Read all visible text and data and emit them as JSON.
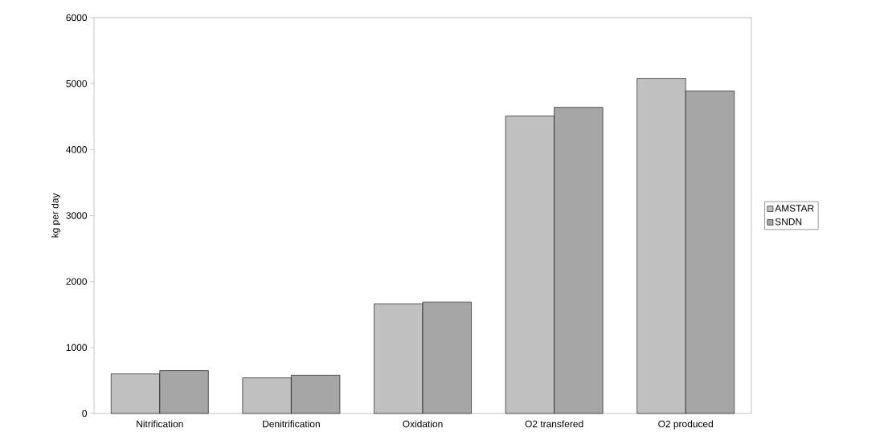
{
  "chart_data": {
    "type": "bar",
    "ylabel": "kg per day",
    "categories": [
      "Nitrification",
      "Denitrification",
      "Oxidation",
      "O2 transfered",
      "O2 produced"
    ],
    "series": [
      {
        "name": "AMSTAR",
        "color": "#c0c0c0",
        "values": [
          600,
          540,
          1660,
          4510,
          5080
        ]
      },
      {
        "name": "SNDN",
        "color": "#a6a6a6",
        "values": [
          650,
          580,
          1690,
          4640,
          4890
        ]
      }
    ],
    "ylim": [
      0,
      6000
    ],
    "yticks": [
      0,
      1000,
      2000,
      3000,
      4000,
      5000,
      6000
    ],
    "grid": false,
    "legend": "right"
  }
}
